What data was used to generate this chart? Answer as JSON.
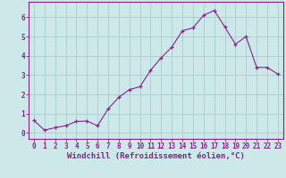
{
  "x": [
    0,
    1,
    2,
    3,
    4,
    5,
    6,
    7,
    8,
    9,
    10,
    11,
    12,
    13,
    14,
    15,
    16,
    17,
    18,
    19,
    20,
    21,
    22,
    23
  ],
  "y": [
    0.65,
    0.15,
    0.28,
    0.38,
    0.6,
    0.62,
    0.38,
    1.25,
    1.85,
    2.25,
    2.4,
    3.25,
    3.9,
    4.45,
    5.3,
    5.45,
    6.1,
    6.35,
    5.5,
    4.6,
    5.0,
    3.4,
    3.4,
    3.05
  ],
  "line_color": "#882288",
  "marker": "+",
  "background_color": "#cce8e8",
  "grid_color": "#aacccc",
  "xlabel": "Windchill (Refroidissement éolien,°C)",
  "xlim": [
    -0.5,
    23.5
  ],
  "ylim": [
    -0.3,
    6.8
  ],
  "yticks": [
    0,
    1,
    2,
    3,
    4,
    5,
    6
  ],
  "xticks": [
    0,
    1,
    2,
    3,
    4,
    5,
    6,
    7,
    8,
    9,
    10,
    11,
    12,
    13,
    14,
    15,
    16,
    17,
    18,
    19,
    20,
    21,
    22,
    23
  ],
  "tick_label_fontsize": 5.5,
  "xlabel_fontsize": 6.5,
  "line_color_spine": "#882288",
  "tick_color": "#882288",
  "linewidth": 0.8,
  "markersize": 3.0,
  "markeredgewidth": 0.9
}
